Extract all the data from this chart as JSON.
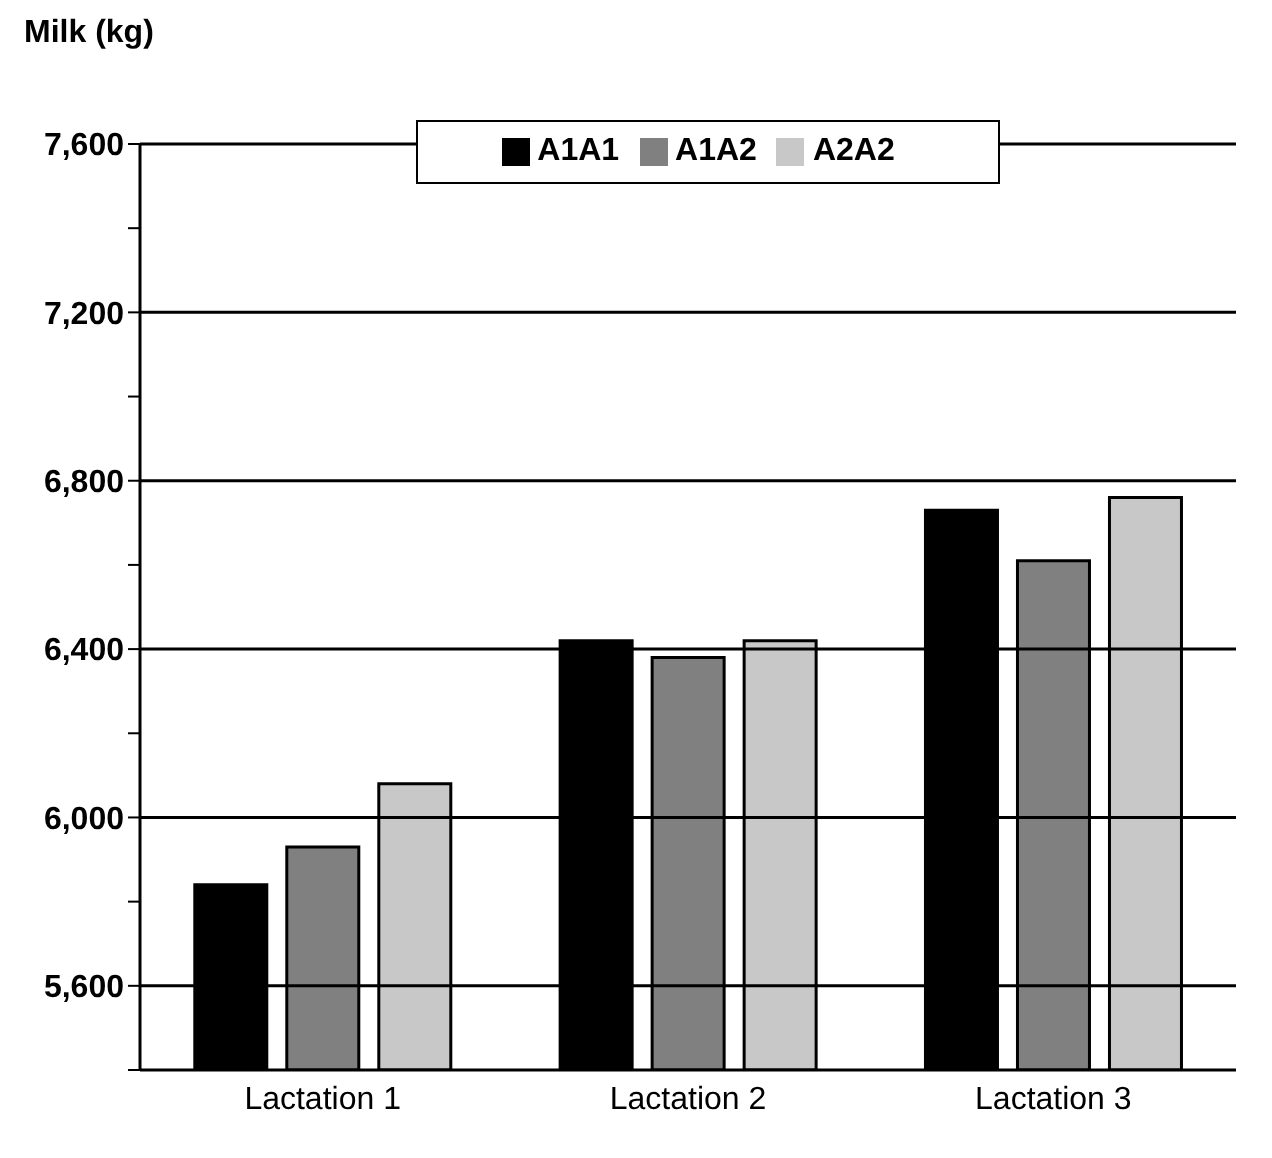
{
  "chart_data": {
    "type": "bar",
    "ylabel": "Milk (kg)",
    "categories": [
      "Lactation 1",
      "Lactation 2",
      "Lactation 3"
    ],
    "series": [
      {
        "name": "A1A1",
        "color": "#000000",
        "values": [
          5840,
          6420,
          6730
        ]
      },
      {
        "name": "A1A2",
        "color": "#808080",
        "values": [
          5930,
          6380,
          6610
        ]
      },
      {
        "name": "A2A2",
        "color": "#c8c8c8",
        "values": [
          6080,
          6420,
          6760
        ]
      }
    ],
    "ylim": [
      5400,
      7600
    ],
    "yticks": [
      {
        "value": 5400,
        "label": null
      },
      {
        "value": 5600,
        "label": "5,600"
      },
      {
        "value": 5800,
        "label": null
      },
      {
        "value": 6000,
        "label": "6,000"
      },
      {
        "value": 6200,
        "label": null
      },
      {
        "value": 6400,
        "label": "6,400"
      },
      {
        "value": 6600,
        "label": null
      },
      {
        "value": 6800,
        "label": "6,800"
      },
      {
        "value": 7000,
        "label": null
      },
      {
        "value": 7200,
        "label": "7,200"
      },
      {
        "value": 7400,
        "label": null
      },
      {
        "value": 7600,
        "label": "7,600"
      }
    ],
    "grid": "y",
    "legend": "top"
  }
}
